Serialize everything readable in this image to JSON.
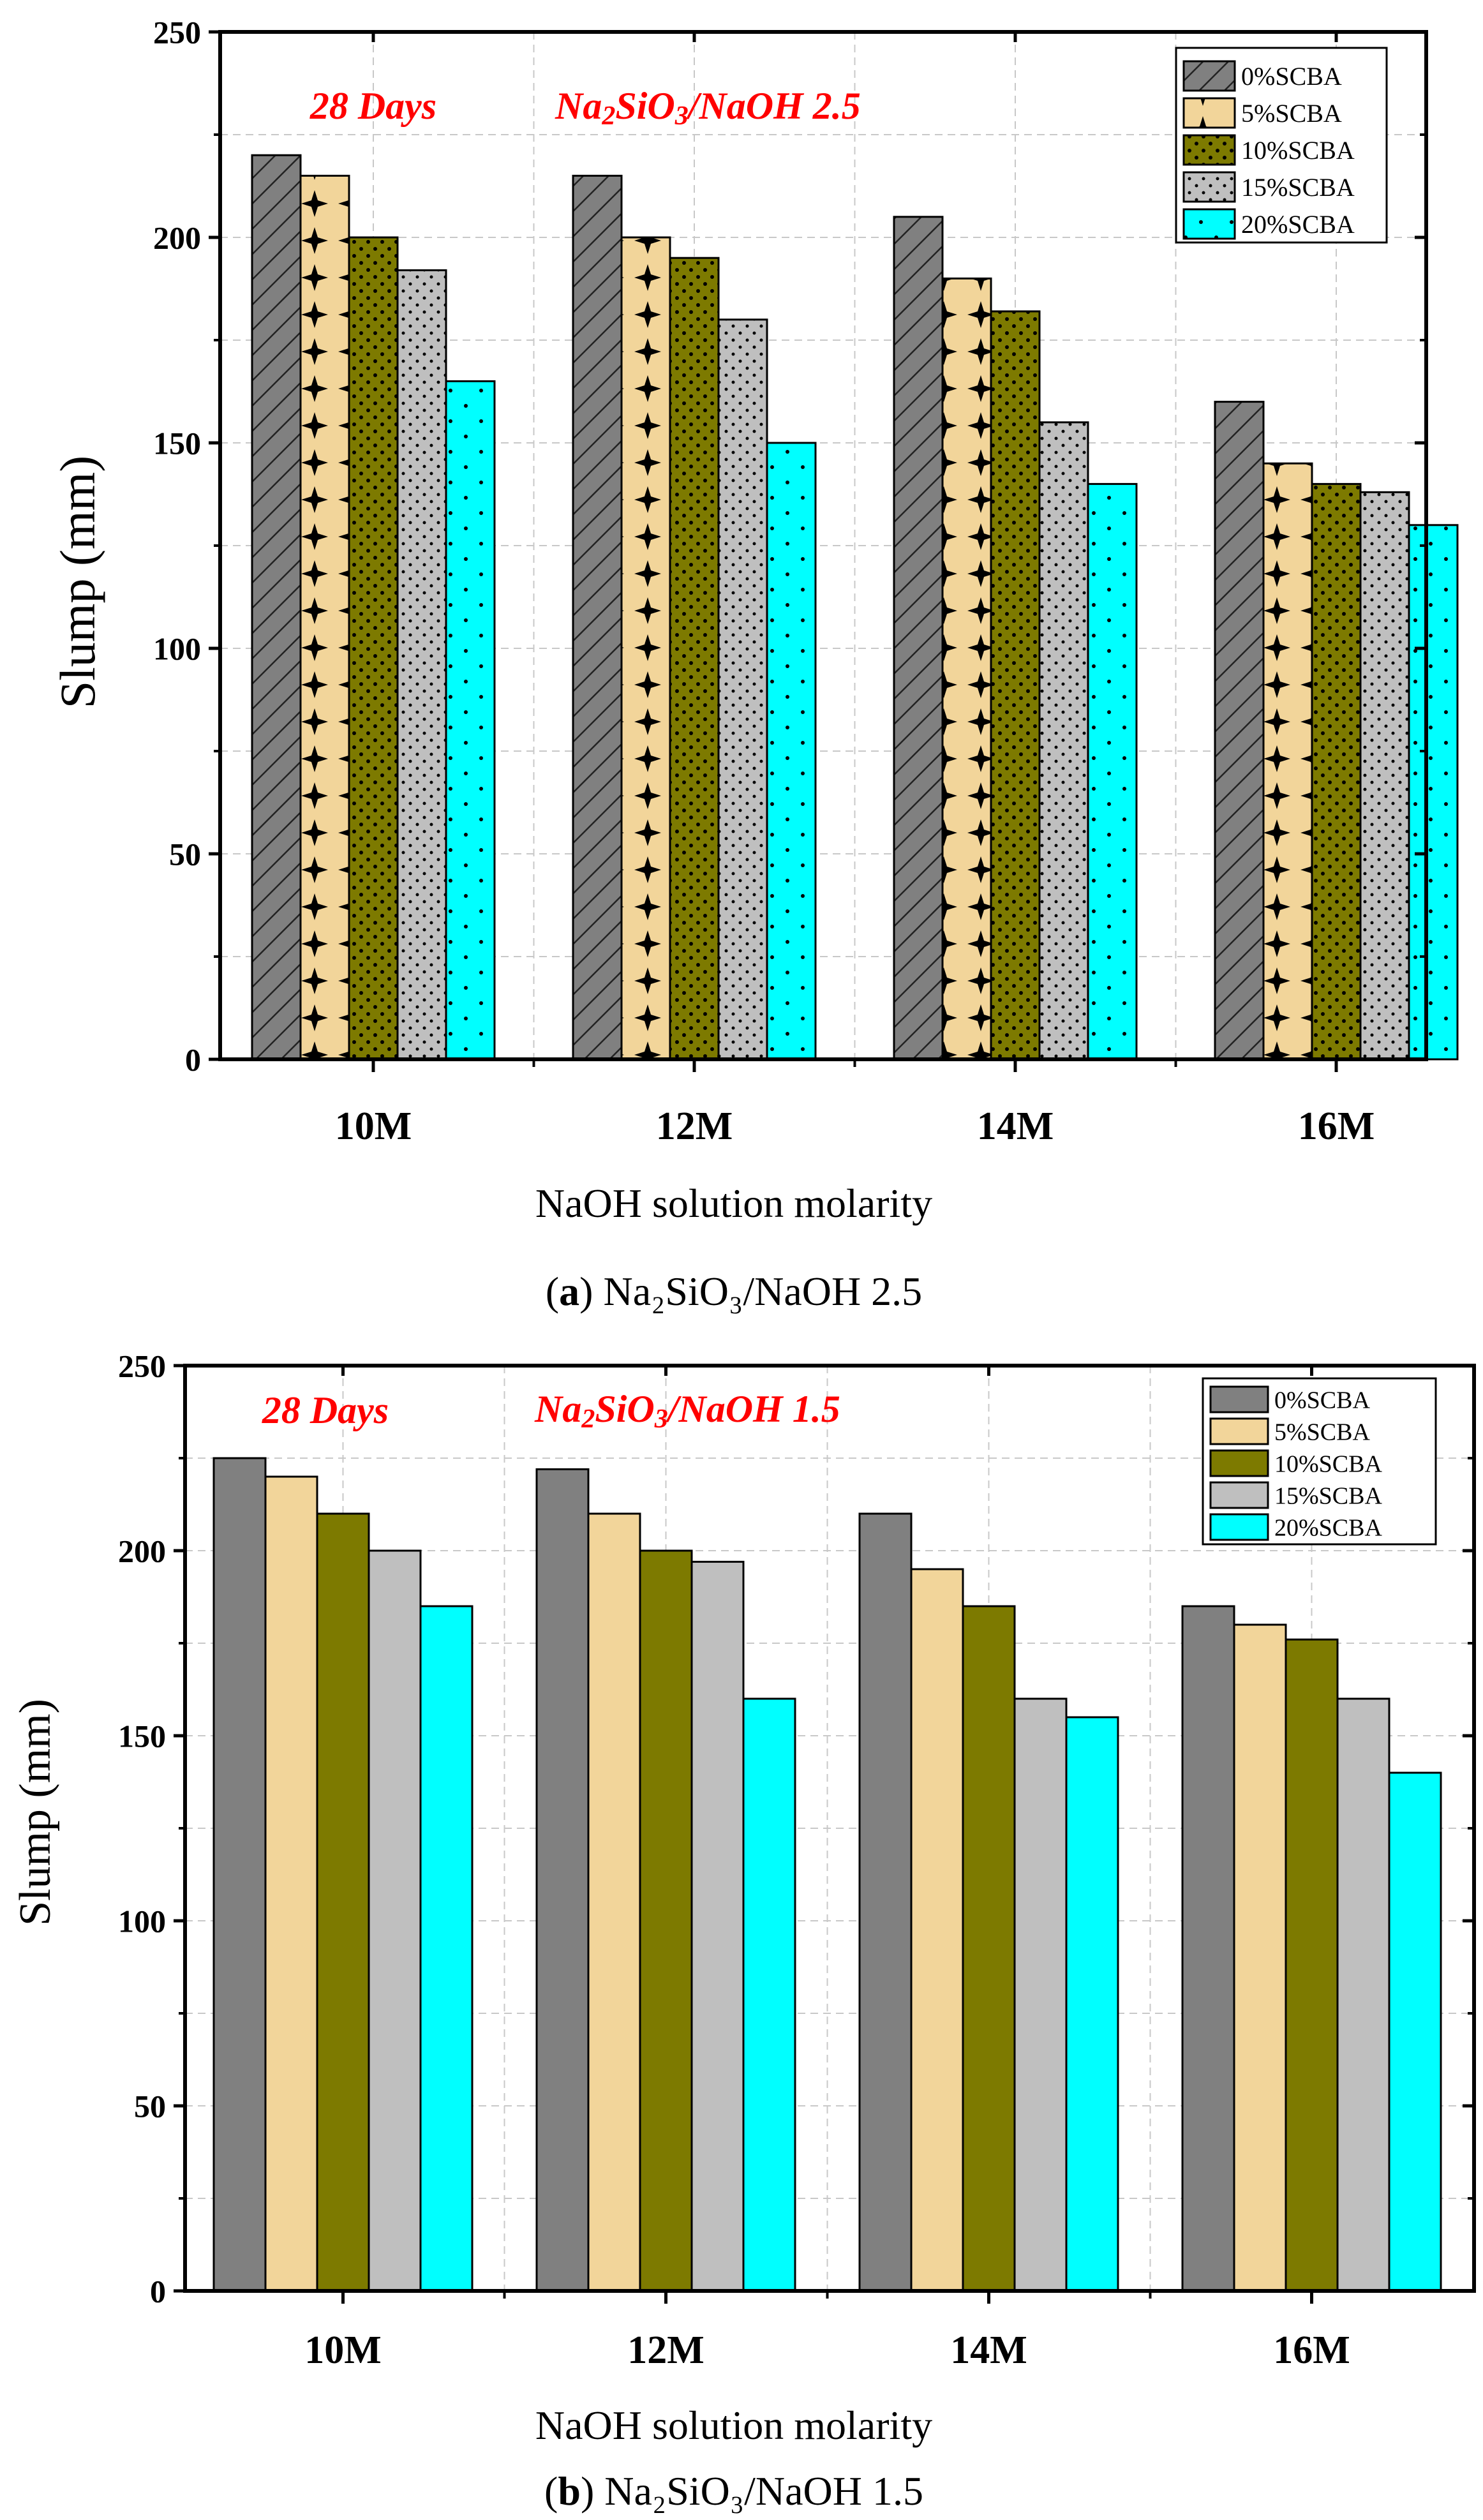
{
  "chart_data": [
    {
      "type": "bar",
      "caption": {
        "label": "a",
        "text": " Na₂SiO₃/NaOH 2.5"
      },
      "annotation_days": "28 Days",
      "annotation_ratio": {
        "p1": "Na",
        "s1": "2",
        "p2": "SiO",
        "s2": "3",
        "p3": "/NaOH 2.5"
      },
      "xlabel": "NaOH solution molarity",
      "ylabel": "Slump (mm)",
      "ylim": [
        0,
        250
      ],
      "yticks": [
        "0",
        "50",
        "100",
        "150",
        "200",
        "250"
      ],
      "categories": [
        "10M",
        "12M",
        "14M",
        "16M"
      ],
      "series": [
        {
          "name": "0%SCBA",
          "values": [
            220,
            215,
            205,
            160
          ]
        },
        {
          "name": "5%SCBA",
          "values": [
            215,
            200,
            190,
            145
          ]
        },
        {
          "name": "10%SCBA",
          "values": [
            200,
            195,
            182,
            140
          ]
        },
        {
          "name": "15%SCBA",
          "values": [
            192,
            180,
            155,
            138
          ]
        },
        {
          "name": "20%SCBA",
          "values": [
            165,
            150,
            140,
            130
          ]
        }
      ]
    },
    {
      "type": "bar",
      "caption": {
        "label": "b",
        "text": " Na₂SiO₃/NaOH 1.5"
      },
      "annotation_days": "28 Days",
      "annotation_ratio": {
        "p1": "Na",
        "s1": "2",
        "p2": "SiO",
        "s2": "3",
        "p3": "/NaOH 1.5"
      },
      "xlabel": "NaOH solution molarity",
      "ylabel": "Slump (mm)",
      "ylim": [
        0,
        250
      ],
      "yticks": [
        "0",
        "50",
        "100",
        "150",
        "200",
        "250"
      ],
      "categories": [
        "10M",
        "12M",
        "14M",
        "16M"
      ],
      "series": [
        {
          "name": "0%SCBA",
          "values": [
            225,
            222,
            210,
            185
          ]
        },
        {
          "name": "5%SCBA",
          "values": [
            220,
            210,
            195,
            180
          ]
        },
        {
          "name": "10%SCBA",
          "values": [
            210,
            200,
            185,
            176
          ]
        },
        {
          "name": "15%SCBA",
          "values": [
            200,
            197,
            160,
            160
          ]
        },
        {
          "name": "20%SCBA",
          "values": [
            185,
            160,
            155,
            140
          ]
        }
      ]
    }
  ],
  "colors": {
    "s0": "#808080",
    "s1": "#f2d59a",
    "s2": "#7d7a00",
    "s3": "#bfbfbf",
    "s4": "#00ffff",
    "annotation": "#ff0000",
    "grid": "#c8c8c8",
    "axis": "#000000"
  }
}
